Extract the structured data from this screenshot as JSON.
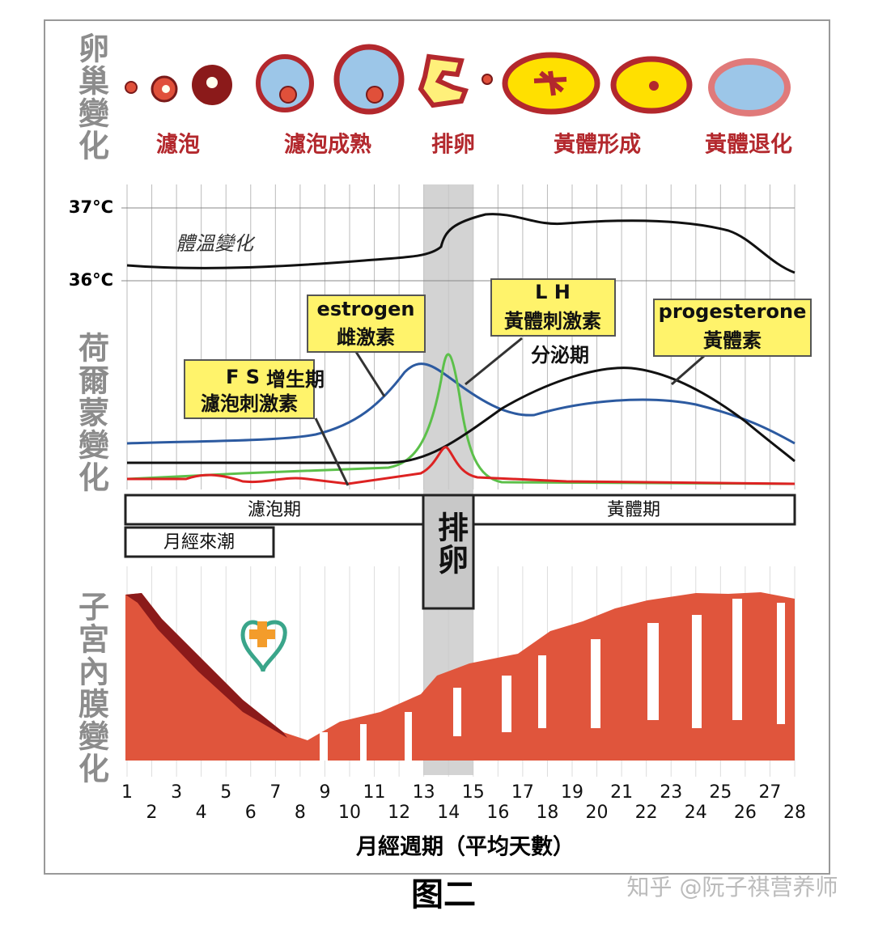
{
  "ovary": {
    "label": "卵巢變化",
    "stages": [
      "濾泡",
      "濾泡成熟",
      "排卵",
      "黃體形成",
      "黃體退化"
    ]
  },
  "temperature": {
    "label": "體溫變化",
    "ticks": [
      "37°C",
      "36°C"
    ]
  },
  "hormones": {
    "label": "荷爾蒙變化",
    "boxes": [
      {
        "lines": [
          "F S",
          "濾泡刺激素"
        ]
      },
      {
        "lines": [
          "estrogen",
          "雌激素"
        ]
      },
      {
        "lines": [
          "L H",
          "黃體刺激素"
        ]
      },
      {
        "lines": [
          "progesterone",
          "黃體素"
        ]
      }
    ],
    "phases": [
      "增生期",
      "分泌期"
    ]
  },
  "periods": {
    "follicular": "濾泡期",
    "menstruation": "月經來潮",
    "ovulation": "排卵",
    "luteal": "黃體期"
  },
  "endometrium": {
    "label": "子宮內膜變化"
  },
  "x_axis": {
    "days": [
      1,
      2,
      3,
      4,
      5,
      6,
      7,
      8,
      9,
      10,
      11,
      12,
      13,
      14,
      15,
      16,
      17,
      18,
      19,
      20,
      21,
      22,
      23,
      24,
      25,
      26,
      27,
      28
    ],
    "title": "月經週期（平均天數）"
  },
  "caption": "图二",
  "watermark": "知乎 @阮子祺营养师"
}
